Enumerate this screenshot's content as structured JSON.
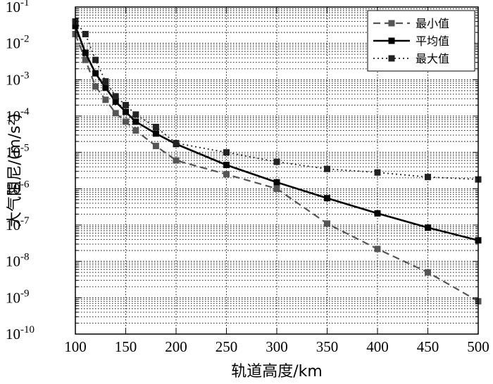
{
  "chart_data": {
    "type": "line",
    "xlabel": "轨道高度/km",
    "ylabel": "大气阻尼/(m/s²)",
    "xlim": [
      100,
      500
    ],
    "ylim": [
      1e-10,
      0.1
    ],
    "yscale": "log",
    "grid": true,
    "legend_position": "top-right",
    "x_ticks": [
      "100",
      "150",
      "200",
      "250",
      "300",
      "350",
      "400",
      "450",
      "500"
    ],
    "y_ticks": [
      {
        "base": "10",
        "exp": "-10",
        "value": 1e-10
      },
      {
        "base": "10",
        "exp": "-9",
        "value": 1e-09
      },
      {
        "base": "10",
        "exp": "-8",
        "value": 1e-08
      },
      {
        "base": "10",
        "exp": "-7",
        "value": 1e-07
      },
      {
        "base": "10",
        "exp": "-6",
        "value": 1e-06
      },
      {
        "base": "10",
        "exp": "-5",
        "value": 1e-05
      },
      {
        "base": "10",
        "exp": "-4",
        "value": 0.0001
      },
      {
        "base": "10",
        "exp": "-3",
        "value": 0.001
      },
      {
        "base": "10",
        "exp": "-2",
        "value": 0.01
      },
      {
        "base": "10",
        "exp": "-1",
        "value": 0.1
      }
    ],
    "series": [
      {
        "name": "最小值",
        "style": "dashed",
        "color": "#555555",
        "points": [
          [
            100,
            0.018
          ],
          [
            110,
            0.0035
          ],
          [
            120,
            0.00065
          ],
          [
            130,
            0.00028
          ],
          [
            140,
            0.00012
          ],
          [
            150,
            7e-05
          ],
          [
            160,
            4e-05
          ],
          [
            180,
            1.5e-05
          ],
          [
            200,
            6e-06
          ],
          [
            250,
            2.5e-06
          ],
          [
            300,
            1e-06
          ],
          [
            350,
            1.1e-07
          ],
          [
            400,
            2.2e-08
          ],
          [
            450,
            5e-09
          ],
          [
            500,
            8e-10
          ]
        ]
      },
      {
        "name": "平均值",
        "style": "solid",
        "color": "#000000",
        "points": [
          [
            100,
            0.03
          ],
          [
            110,
            0.0055
          ],
          [
            120,
            0.0015
          ],
          [
            130,
            0.0006
          ],
          [
            140,
            0.00025
          ],
          [
            150,
            0.00013
          ],
          [
            160,
            7e-05
          ],
          [
            180,
            3.3e-05
          ],
          [
            200,
            1.7e-05
          ],
          [
            250,
            4.5e-06
          ],
          [
            300,
            1.5e-06
          ],
          [
            350,
            5.5e-07
          ],
          [
            400,
            2.1e-07
          ],
          [
            450,
            8.5e-08
          ],
          [
            500,
            3.8e-08
          ]
        ]
      },
      {
        "name": "最大值",
        "style": "dotted",
        "color": "#222222",
        "points": [
          [
            100,
            0.04
          ],
          [
            110,
            0.018
          ],
          [
            120,
            0.0035
          ],
          [
            130,
            0.0009
          ],
          [
            140,
            0.00035
          ],
          [
            150,
            0.0002
          ],
          [
            160,
            0.00011
          ],
          [
            180,
            5e-05
          ],
          [
            200,
            1.8e-05
          ],
          [
            250,
            1e-05
          ],
          [
            300,
            5.5e-06
          ],
          [
            350,
            3.5e-06
          ],
          [
            400,
            2.8e-06
          ],
          [
            450,
            2.1e-06
          ],
          [
            500,
            1.8e-06
          ]
        ]
      }
    ]
  }
}
